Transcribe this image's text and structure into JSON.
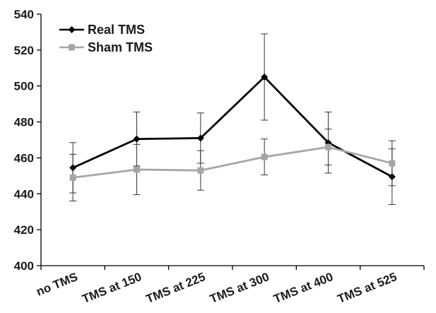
{
  "chart_data": {
    "type": "line",
    "categories": [
      "no TMS",
      "TMS at 150",
      "TMS at 225",
      "TMS at 300",
      "TMS at 400",
      "TMS at 525"
    ],
    "ylim": [
      400,
      540
    ],
    "yticks": [
      400,
      420,
      440,
      460,
      480,
      500,
      520,
      540
    ],
    "grid": false,
    "legend_position": "top-left",
    "series": [
      {
        "name": "Real TMS",
        "color": "#000000",
        "marker": "diamond",
        "values": [
          454.5,
          470.5,
          471,
          505,
          468.5,
          449.5
        ],
        "error": [
          14,
          15,
          14,
          24,
          17,
          15.5
        ]
      },
      {
        "name": "Sham TMS",
        "color": "#a6a6a6",
        "marker": "square",
        "values": [
          449,
          453.5,
          453,
          460.5,
          466,
          457
        ],
        "error": [
          13,
          14,
          11,
          10,
          10,
          12.5
        ]
      }
    ]
  }
}
